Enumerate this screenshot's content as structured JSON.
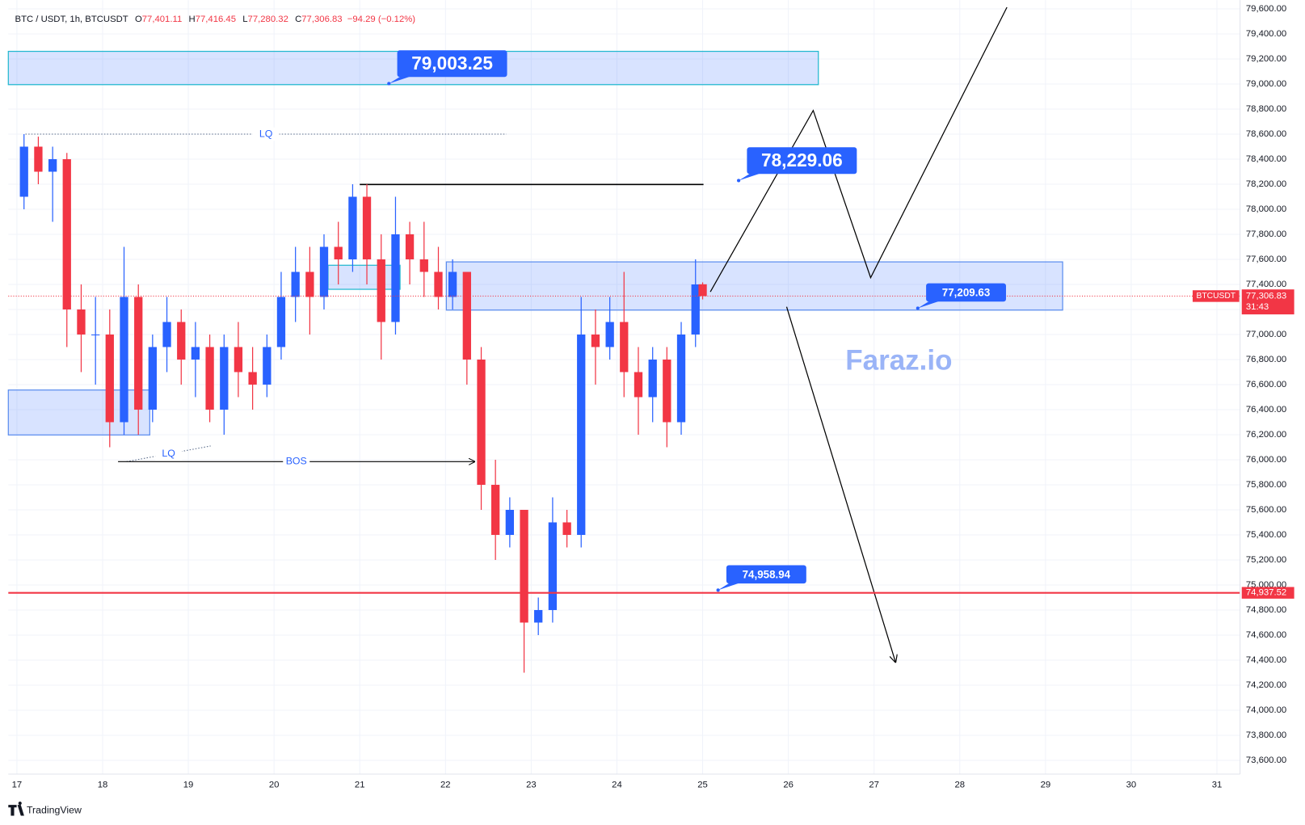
{
  "chart_data": {
    "type": "candlestick",
    "header": {
      "symbol": "BTC / USDT, 1h, BTCUSDT",
      "ohlc_labels": [
        "O",
        "H",
        "L",
        "C"
      ],
      "open": "77,401.11",
      "high": "77,416.45",
      "low": "77,280.32",
      "close": "77,306.83",
      "change": "−94.29 (−0.12%)"
    },
    "x": [
      17.083,
      17.25,
      17.417,
      17.583,
      17.75,
      17.917,
      18.083,
      18.25,
      18.417,
      18.583,
      18.75,
      18.917,
      19.083,
      19.25,
      19.417,
      19.583,
      19.75,
      19.917,
      20.083,
      20.25,
      20.417,
      20.583,
      20.75,
      20.917,
      21.083,
      21.25,
      21.417,
      21.583,
      21.75,
      21.917,
      22.083,
      22.25,
      22.417,
      22.583,
      22.75,
      22.917,
      23.083,
      23.25,
      23.417,
      23.583,
      23.75,
      23.917,
      24.083,
      24.25,
      24.417,
      24.583,
      24.75,
      24.917,
      25.0
    ],
    "open": [
      78100,
      78500,
      78300,
      78400,
      77200,
      77000,
      77000,
      76300,
      77300,
      76400,
      76900,
      77100,
      76800,
      76900,
      76400,
      76900,
      76700,
      76600,
      76900,
      77300,
      77500,
      77300,
      77700,
      77600,
      78100,
      77600,
      77100,
      77800,
      77600,
      77500,
      77300,
      77500,
      76800,
      75800,
      75400,
      75600,
      74700,
      74800,
      75500,
      75400,
      77000,
      76900,
      77100,
      76700,
      76500,
      76800,
      76300,
      77000,
      77401.11
    ],
    "high": [
      78600,
      78580,
      78500,
      78450,
      77400,
      77300,
      77200,
      77700,
      77400,
      77000,
      77300,
      77200,
      77100,
      77000,
      77000,
      77100,
      76900,
      77000,
      77500,
      77700,
      77700,
      77800,
      77900,
      78200,
      78200,
      77800,
      78100,
      77900,
      77900,
      77700,
      77600,
      77500,
      76900,
      76000,
      75700,
      75600,
      74900,
      75700,
      75600,
      77300,
      77200,
      77300,
      77500,
      76900,
      76900,
      76900,
      77100,
      77600,
      77416.45
    ],
    "low": [
      78000,
      78200,
      77900,
      76900,
      76700,
      76600,
      76100,
      76200,
      76200,
      76300,
      76700,
      76600,
      76500,
      76300,
      76200,
      76500,
      76400,
      76500,
      76800,
      77100,
      77000,
      77200,
      77400,
      77500,
      77400,
      76800,
      77000,
      77400,
      77300,
      77200,
      77200,
      76600,
      75600,
      75200,
      75300,
      74300,
      74600,
      74700,
      75300,
      75300,
      76600,
      76800,
      76500,
      76200,
      76300,
      76100,
      76200,
      76900,
      77280.32
    ],
    "close": [
      78500,
      78300,
      78400,
      77200,
      77000,
      77000,
      76300,
      77300,
      76400,
      76900,
      77100,
      76800,
      76900,
      76400,
      76900,
      76700,
      76600,
      76900,
      77300,
      77500,
      77300,
      77700,
      77600,
      78100,
      77600,
      77100,
      77800,
      77600,
      77500,
      77300,
      77500,
      76800,
      75800,
      75400,
      75600,
      74700,
      74800,
      75500,
      75400,
      77000,
      76900,
      77100,
      76700,
      76500,
      76800,
      76300,
      77000,
      77400,
      77306.83
    ],
    "up_color": "#2962ff",
    "down_color": "#f23645",
    "xlim": [
      16.9,
      31.27
    ],
    "xticks": [
      17,
      18,
      19,
      20,
      21,
      22,
      23,
      24,
      25,
      26,
      27,
      28,
      29,
      30,
      31
    ],
    "ylim": [
      73490,
      79670
    ],
    "yticks": [
      {
        "value": 73600,
        "label": "73,600.00"
      },
      {
        "value": 73800,
        "label": "73,800.00"
      },
      {
        "value": 74000,
        "label": "74,000.00"
      },
      {
        "value": 74200,
        "label": "74,200.00"
      },
      {
        "value": 74400,
        "label": "74,400.00"
      },
      {
        "value": 74600,
        "label": "74,600.00"
      },
      {
        "value": 74800,
        "label": "74,800.00"
      },
      {
        "value": 75000,
        "label": "75,000.00"
      },
      {
        "value": 75200,
        "label": "75,200.00"
      },
      {
        "value": 75400,
        "label": "75,400.00"
      },
      {
        "value": 75600,
        "label": "75,600.00"
      },
      {
        "value": 75800,
        "label": "75,800.00"
      },
      {
        "value": 76000,
        "label": "76,000.00"
      },
      {
        "value": 76200,
        "label": "76,200.00"
      },
      {
        "value": 76400,
        "label": "76,400.00"
      },
      {
        "value": 76600,
        "label": "76,600.00"
      },
      {
        "value": 76800,
        "label": "76,800.00"
      },
      {
        "value": 77000,
        "label": "77,000.00"
      },
      {
        "value": 77200,
        "label": "77,200.00"
      },
      {
        "value": 77400,
        "label": "77,400.00"
      },
      {
        "value": 77600,
        "label": "77,600.00"
      },
      {
        "value": 77800,
        "label": "77,800.00"
      },
      {
        "value": 78000,
        "label": "78,000.00"
      },
      {
        "value": 78200,
        "label": "78,200.00"
      },
      {
        "value": 78400,
        "label": "78,400.00"
      },
      {
        "value": 78600,
        "label": "78,600.00"
      },
      {
        "value": 78800,
        "label": "78,800.00"
      },
      {
        "value": 79000,
        "label": "79,000.00"
      },
      {
        "value": 79200,
        "label": "79,200.00"
      },
      {
        "value": 79400,
        "label": "79,400.00"
      },
      {
        "value": 79600,
        "label": "79,600.00"
      }
    ],
    "grid": true,
    "zones": [
      {
        "top": 79261,
        "bottom": 78995,
        "x": [
          16.9,
          26.35
        ],
        "border": "#22b8cf"
      },
      {
        "top": 77580,
        "bottom": 77195,
        "x": [
          22.01,
          29.2
        ],
        "border": "#5b8def"
      },
      {
        "top": 77553,
        "bottom": 77361,
        "x": [
          20.63,
          21.47
        ],
        "border": "#22b8cf"
      },
      {
        "top": 76557,
        "bottom": 76198,
        "x": [
          16.9,
          18.55
        ],
        "border": "#5b8def"
      }
    ],
    "callouts": [
      {
        "label": "79,003.25",
        "value": 79003.25,
        "x": 21.34,
        "size": "large"
      },
      {
        "label": "78,229.06",
        "value": 78229.06,
        "x": 25.42,
        "size": "large"
      },
      {
        "label": "77,209.63",
        "value": 77209.63,
        "x": 27.51,
        "size": "small"
      },
      {
        "label": "74,958.94",
        "value": 74958.94,
        "x": 25.18,
        "size": "small"
      }
    ],
    "levels": [
      {
        "label": "LQ",
        "x": [
          17.1,
          22.71
        ],
        "y": [
          78600,
          78600
        ],
        "style": "dotted"
      },
      {
        "label": "LQ",
        "x": [
          18.28,
          19.26
        ],
        "y": [
          75985,
          76110
        ],
        "style": "dotted"
      },
      {
        "label": "BOS",
        "x": [
          18.18,
          22.34
        ],
        "y": [
          75985,
          75985
        ],
        "style": "arrow"
      }
    ],
    "resistance": {
      "x": [
        21.0,
        25.01
      ],
      "value": 78198
    },
    "projections": [
      {
        "x": [
          25.09,
          26.29,
          26.96,
          28.55
        ],
        "y": [
          77341,
          78789,
          77454,
          79613
        ]
      },
      {
        "x": [
          25.98,
          27.25
        ],
        "y": [
          77221,
          74385
        ]
      }
    ],
    "price_line": {
      "value": 74937.52,
      "label": "74,937.52",
      "color": "#f23645"
    },
    "last_price": {
      "symbol_label": "BTCUSDT",
      "value": 77306.83,
      "label": "77,306.83",
      "countdown": "31:43",
      "color": "#f23645"
    },
    "watermark": "Faraz.io",
    "footer": "TradingView"
  }
}
